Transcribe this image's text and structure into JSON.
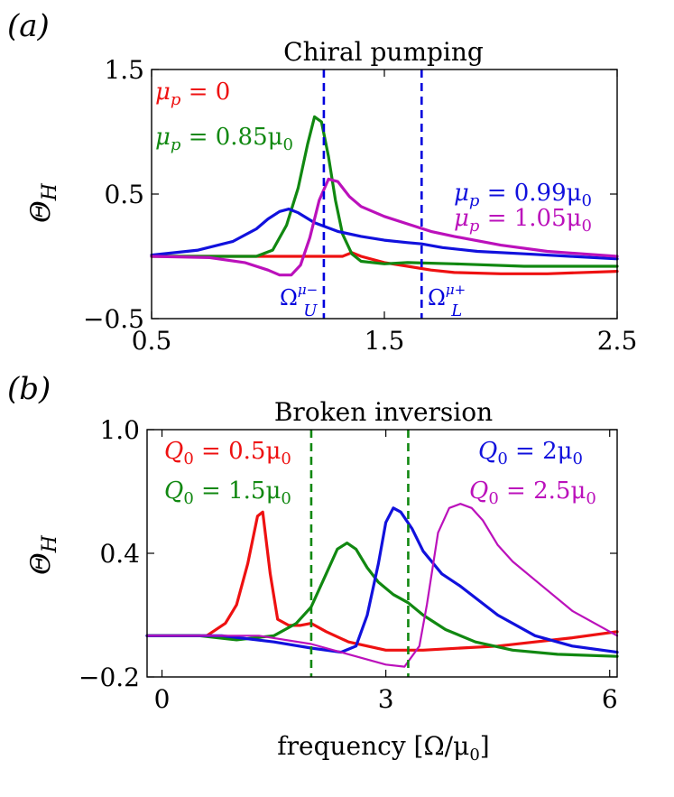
{
  "chart_data": [
    {
      "type": "line",
      "panel_label": "(a)",
      "title": "Chiral pumping",
      "xlabel": "",
      "ylabel": "Θ_H",
      "ylabel_main": "Θ",
      "ylabel_sub": "H",
      "xlim": [
        0.5,
        2.5
      ],
      "ylim": [
        -0.5,
        1.5
      ],
      "xticks": [
        0.5,
        1.5,
        2.5
      ],
      "xtick_labels": [
        "0.5",
        "1.5",
        "2.5"
      ],
      "yticks": [
        -0.5,
        0.5,
        1.5
      ],
      "ytick_labels": [
        "−0.5",
        "0.5",
        "1.5"
      ],
      "vlines": [
        {
          "x": 1.24,
          "color": "#0000dd",
          "style": "dashed",
          "label_main": "Ω",
          "label_sub": "U",
          "label_sup": "μ−"
        },
        {
          "x": 1.66,
          "color": "#0000dd",
          "style": "dashed",
          "label_main": "Ω",
          "label_sub": "L",
          "label_sup": "μ+"
        }
      ],
      "legend": [
        {
          "text": "μp = 0",
          "main": "μ",
          "sub": "p",
          "rest": " = 0",
          "color": "#ee1111",
          "position": "top-left"
        },
        {
          "text": "μp = 0.85μ0",
          "main": "μ",
          "sub": "p",
          "rest": " = 0.85μ",
          "rest_sub": "0",
          "color": "#118811",
          "position": "top-left"
        },
        {
          "text": "μp = 0.99μ0",
          "main": "μ",
          "sub": "p",
          "rest": " = 0.99μ",
          "rest_sub": "0",
          "color": "#1111dd",
          "position": "right"
        },
        {
          "text": "μp = 1.05μ0",
          "main": "μ",
          "sub": "p",
          "rest": " = 1.05μ",
          "rest_sub": "0",
          "color": "#bb11bb",
          "position": "right"
        }
      ],
      "series": [
        {
          "name": "μp = 0",
          "color": "#ee1111",
          "x": [
            0.5,
            1.1,
            1.2,
            1.28,
            1.32,
            1.36,
            1.4,
            1.5,
            1.6,
            1.7,
            1.8,
            2.0,
            2.2,
            2.5
          ],
          "y": [
            0.0,
            0.0,
            0.0,
            0.0,
            0.0,
            0.03,
            0.0,
            -0.05,
            -0.08,
            -0.11,
            -0.13,
            -0.14,
            -0.14,
            -0.12
          ]
        },
        {
          "name": "μp = 0.85μ0",
          "color": "#118811",
          "x": [
            0.5,
            0.95,
            1.02,
            1.08,
            1.13,
            1.17,
            1.2,
            1.23,
            1.26,
            1.29,
            1.32,
            1.36,
            1.4,
            1.5,
            1.6,
            1.8,
            2.1,
            2.5
          ],
          "y": [
            0.0,
            0.0,
            0.05,
            0.25,
            0.55,
            0.9,
            1.12,
            1.08,
            0.8,
            0.45,
            0.18,
            0.02,
            -0.04,
            -0.06,
            -0.05,
            -0.06,
            -0.08,
            -0.08
          ]
        },
        {
          "name": "μp = 0.99μ0",
          "color": "#1111dd",
          "x": [
            0.5,
            0.7,
            0.85,
            0.95,
            1.0,
            1.05,
            1.09,
            1.13,
            1.2,
            1.3,
            1.4,
            1.5,
            1.6,
            1.66,
            1.75,
            1.9,
            2.1,
            2.3,
            2.5
          ],
          "y": [
            0.01,
            0.05,
            0.12,
            0.22,
            0.3,
            0.36,
            0.38,
            0.35,
            0.27,
            0.2,
            0.16,
            0.13,
            0.11,
            0.1,
            0.07,
            0.04,
            0.02,
            0.0,
            -0.02
          ]
        },
        {
          "name": "μp = 1.05μ0",
          "color": "#bb11bb",
          "x": [
            0.5,
            0.75,
            0.9,
            1.0,
            1.05,
            1.1,
            1.14,
            1.18,
            1.22,
            1.26,
            1.3,
            1.35,
            1.4,
            1.5,
            1.6,
            1.7,
            1.8,
            2.0,
            2.2,
            2.5
          ],
          "y": [
            0.0,
            -0.01,
            -0.05,
            -0.11,
            -0.15,
            -0.15,
            -0.07,
            0.15,
            0.45,
            0.62,
            0.6,
            0.48,
            0.4,
            0.32,
            0.26,
            0.2,
            0.16,
            0.09,
            0.04,
            0.0
          ]
        }
      ]
    },
    {
      "type": "line",
      "panel_label": "(b)",
      "title": "Broken inversion",
      "xlabel": "frequency [Ω/μ0]",
      "xlabel_pre": "frequency [Ω/μ",
      "xlabel_sub": "0",
      "xlabel_post": "]",
      "ylabel": "Θ_H",
      "ylabel_main": "Θ",
      "ylabel_sub": "H",
      "xlim": [
        -0.2,
        6.1
      ],
      "ylim": [
        -0.2,
        1.0
      ],
      "xticks": [
        0,
        3,
        6
      ],
      "xtick_labels": [
        "0",
        "3",
        "6"
      ],
      "yticks": [
        -0.2,
        0.4,
        1.0
      ],
      "ytick_labels": [
        "−0.2",
        "0.4",
        "1.0"
      ],
      "vlines": [
        {
          "x": 2.0,
          "color": "#118811",
          "style": "dashed"
        },
        {
          "x": 3.3,
          "color": "#118811",
          "style": "dashed"
        }
      ],
      "legend": [
        {
          "text": "Q0 = 0.5μ0",
          "main": "Q",
          "sub": "0",
          "rest": " = 0.5μ",
          "rest_sub": "0",
          "color": "#ee1111",
          "position": "top-left"
        },
        {
          "text": "Q0 = 1.5μ0",
          "main": "Q",
          "sub": "0",
          "rest": " = 1.5μ",
          "rest_sub": "0",
          "color": "#118811",
          "position": "top-left"
        },
        {
          "text": "Q0 = 2μ0",
          "main": "Q",
          "sub": "0",
          "rest": " = 2μ",
          "rest_sub": "0",
          "color": "#1111dd",
          "position": "top-right"
        },
        {
          "text": "Q0 = 2.5μ0",
          "main": "Q",
          "sub": "0",
          "rest": " = 2.5μ",
          "rest_sub": "0",
          "color": "#bb11bb",
          "position": "top-right"
        }
      ],
      "series": [
        {
          "name": "Q0 = 0.5μ0",
          "color": "#ee1111",
          "x": [
            -0.2,
            0.6,
            0.85,
            1.0,
            1.15,
            1.28,
            1.35,
            1.45,
            1.55,
            1.7,
            1.85,
            2.0,
            2.2,
            2.5,
            3.0,
            3.5,
            4.0,
            4.5,
            5.0,
            5.5,
            6.1
          ],
          "y": [
            0.0,
            0.0,
            0.06,
            0.15,
            0.35,
            0.58,
            0.6,
            0.3,
            0.08,
            0.05,
            0.05,
            0.06,
            0.02,
            -0.03,
            -0.07,
            -0.07,
            -0.06,
            -0.05,
            -0.03,
            -0.01,
            0.02
          ]
        },
        {
          "name": "Q0 = 1.5μ0",
          "color": "#118811",
          "x": [
            -0.2,
            0.5,
            1.0,
            1.5,
            1.8,
            2.0,
            2.2,
            2.35,
            2.48,
            2.6,
            2.75,
            2.9,
            3.1,
            3.3,
            3.5,
            3.8,
            4.2,
            4.7,
            5.3,
            6.1
          ],
          "y": [
            0.0,
            0.0,
            -0.02,
            0.0,
            0.06,
            0.14,
            0.3,
            0.42,
            0.45,
            0.42,
            0.33,
            0.26,
            0.2,
            0.16,
            0.1,
            0.03,
            -0.03,
            -0.07,
            -0.09,
            -0.1
          ]
        },
        {
          "name": "Q0 = 2μ0",
          "color": "#1111dd",
          "x": [
            -0.2,
            0.8,
            1.5,
            2.0,
            2.4,
            2.6,
            2.75,
            2.9,
            3.0,
            3.1,
            3.2,
            3.35,
            3.5,
            3.75,
            4.0,
            4.5,
            5.0,
            5.5,
            6.1
          ],
          "y": [
            0.0,
            0.0,
            -0.03,
            -0.06,
            -0.08,
            -0.05,
            0.1,
            0.35,
            0.55,
            0.62,
            0.6,
            0.52,
            0.41,
            0.3,
            0.24,
            0.1,
            0.0,
            -0.05,
            -0.08
          ]
        },
        {
          "name": "Q0 = 2.5μ0",
          "color": "#bb11bb",
          "x": [
            -0.2,
            1.3,
            2.0,
            2.5,
            3.0,
            3.25,
            3.45,
            3.55,
            3.7,
            3.85,
            4.0,
            4.15,
            4.3,
            4.5,
            4.7,
            5.0,
            5.5,
            6.1
          ],
          "y": [
            0.0,
            0.0,
            -0.04,
            -0.09,
            -0.14,
            -0.15,
            -0.05,
            0.15,
            0.5,
            0.62,
            0.64,
            0.62,
            0.56,
            0.44,
            0.36,
            0.27,
            0.12,
            0.0
          ]
        }
      ]
    }
  ]
}
